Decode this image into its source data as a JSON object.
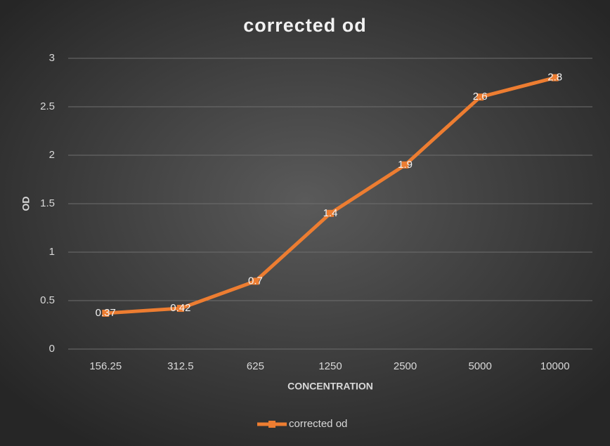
{
  "chart_data": {
    "type": "line",
    "title": "corrected od",
    "x_label": "CONCENTRATION",
    "y_label": "OD",
    "categories": [
      "156.25",
      "312.5",
      "625",
      "1250",
      "2500",
      "5000",
      "10000"
    ],
    "series": [
      {
        "name": "corrected od",
        "color": "#ed7d31",
        "values": [
          0.37,
          0.42,
          0.7,
          1.4,
          1.9,
          2.6,
          2.8
        ]
      }
    ],
    "ylim": [
      0,
      3
    ],
    "yticks": [
      0,
      0.5,
      1,
      1.5,
      2,
      2.5,
      3
    ],
    "grid": true,
    "legend": "bottom",
    "data_labels": true
  }
}
